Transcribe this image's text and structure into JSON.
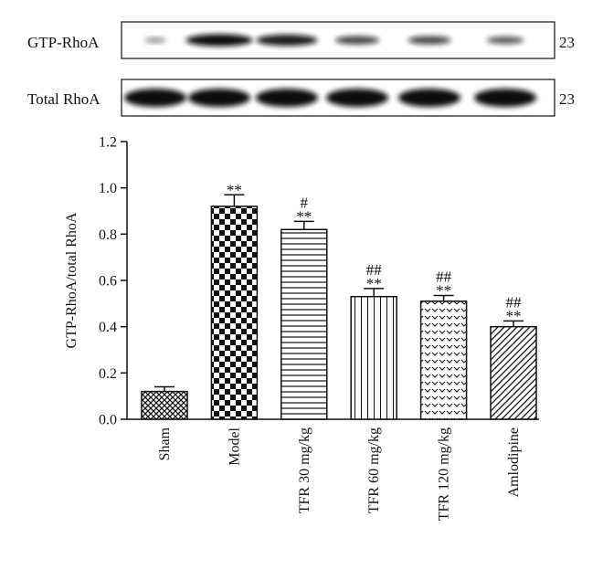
{
  "blots": [
    {
      "label": "GTP-RhoA",
      "marker": "23",
      "intensities": [
        0.12,
        0.92,
        0.82,
        0.53,
        0.51,
        0.4
      ]
    },
    {
      "label": "Total RhoA",
      "marker": "23",
      "intensities": [
        0.95,
        0.95,
        0.95,
        0.95,
        0.95,
        0.95
      ]
    }
  ],
  "chart_data": {
    "type": "bar",
    "title": "",
    "xlabel": "",
    "ylabel": "GTP-RhoA/total RhoA",
    "ylim": [
      0,
      1.2
    ],
    "yticks": [
      "0.0",
      "0.2",
      "0.4",
      "0.6",
      "0.8",
      "1.0",
      "1.2"
    ],
    "categories": [
      "Sham",
      "Model",
      "TFR 30 mg/kg",
      "TFR 60 mg/kg",
      "TFR 120 mg/kg",
      "Amlodipine"
    ],
    "values": [
      0.12,
      0.92,
      0.82,
      0.53,
      0.51,
      0.4
    ],
    "errors": [
      0.02,
      0.05,
      0.035,
      0.035,
      0.025,
      0.025
    ],
    "patterns": [
      "crosshatch",
      "checker",
      "horizontal-lines",
      "vertical-lines",
      "chevrons",
      "diagonal-lines"
    ],
    "annotations": [
      {
        "category": "Model",
        "lines": [
          "**"
        ]
      },
      {
        "category": "TFR 30 mg/kg",
        "lines": [
          "#",
          "**"
        ]
      },
      {
        "category": "TFR 60 mg/kg",
        "lines": [
          "##",
          "**"
        ]
      },
      {
        "category": "TFR 120 mg/kg",
        "lines": [
          "##",
          "**"
        ]
      },
      {
        "category": "Amlodipine",
        "lines": [
          "##",
          "**"
        ]
      }
    ],
    "grid": false,
    "legend": "none"
  }
}
